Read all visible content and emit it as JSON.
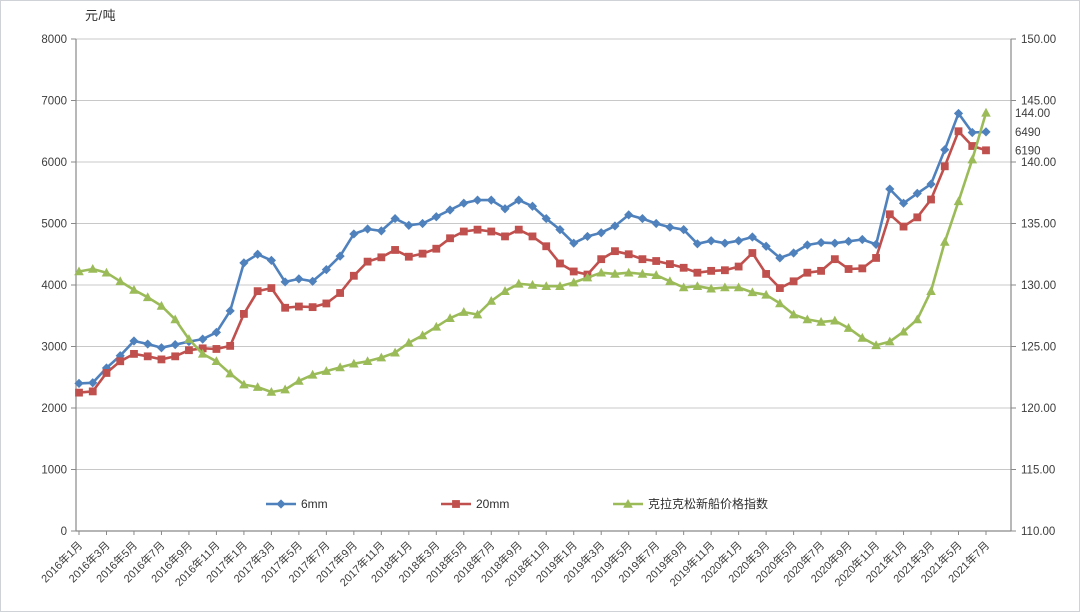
{
  "page": {
    "background": "#ffffff",
    "border_color": "#cfd2d6",
    "text_color": "#3d3d3d",
    "grid_color": "#c8c8c8",
    "axis_color": "#898989"
  },
  "chart_data": {
    "type": "line",
    "unit_label": "元/吨",
    "x": [
      "2016年1月",
      "2016年2月",
      "2016年3月",
      "2016年4月",
      "2016年5月",
      "2016年6月",
      "2016年7月",
      "2016年8月",
      "2016年9月",
      "2016年10月",
      "2016年11月",
      "2016年12月",
      "2017年1月",
      "2017年2月",
      "2017年3月",
      "2017年4月",
      "2017年5月",
      "2017年6月",
      "2017年7月",
      "2017年8月",
      "2017年9月",
      "2017年10月",
      "2017年11月",
      "2017年12月",
      "2018年1月",
      "2018年2月",
      "2018年3月",
      "2018年4月",
      "2018年5月",
      "2018年6月",
      "2018年7月",
      "2018年8月",
      "2018年9月",
      "2018年10月",
      "2018年11月",
      "2018年12月",
      "2019年1月",
      "2019年2月",
      "2019年3月",
      "2019年4月",
      "2019年5月",
      "2019年6月",
      "2019年7月",
      "2019年8月",
      "2019年9月",
      "2019年10月",
      "2019年11月",
      "2019年12月",
      "2020年1月",
      "2020年2月",
      "2020年3月",
      "2020年4月",
      "2020年5月",
      "2020年6月",
      "2020年7月",
      "2020年8月",
      "2020年9月",
      "2020年10月",
      "2020年11月",
      "2020年12月",
      "2021年1月",
      "2021年2月",
      "2021年3月",
      "2021年4月",
      "2021年5月",
      "2021年6月",
      "2021年7月"
    ],
    "label_every": 2,
    "left_axis": {
      "min": 0,
      "max": 8000,
      "step": 1000,
      "tick_labels": [
        "0",
        "1000",
        "2000",
        "3000",
        "4000",
        "5000",
        "6000",
        "7000",
        "8000"
      ]
    },
    "right_axis": {
      "min": 110,
      "max": 150,
      "step": 5,
      "tick_labels": [
        "110.00",
        "115.00",
        "120.00",
        "125.00",
        "130.00",
        "135.00",
        "140.00",
        "145.00",
        "150.00"
      ]
    },
    "series": [
      {
        "name": "6mm",
        "axis": "left",
        "color": "#4f81bd",
        "marker": "diamond",
        "values": [
          2400,
          2410,
          2650,
          2850,
          3090,
          3040,
          2980,
          3030,
          3080,
          3120,
          3230,
          3580,
          4360,
          4500,
          4400,
          4050,
          4100,
          4060,
          4250,
          4470,
          4830,
          4910,
          4880,
          5080,
          4970,
          5000,
          5110,
          5220,
          5330,
          5380,
          5380,
          5240,
          5380,
          5280,
          5080,
          4900,
          4680,
          4790,
          4850,
          4960,
          5140,
          5080,
          5000,
          4940,
          4900,
          4670,
          4720,
          4680,
          4720,
          4780,
          4630,
          4440,
          4520,
          4650,
          4690,
          4680,
          4710,
          4740,
          4660,
          5560,
          5330,
          5490,
          5640,
          6200,
          6790,
          6480,
          6490
        ]
      },
      {
        "name": "20mm",
        "axis": "left",
        "color": "#c0504d",
        "marker": "square",
        "values": [
          2250,
          2270,
          2570,
          2760,
          2880,
          2840,
          2790,
          2840,
          2940,
          2970,
          2960,
          3010,
          3530,
          3900,
          3950,
          3630,
          3650,
          3640,
          3700,
          3870,
          4150,
          4380,
          4450,
          4570,
          4460,
          4510,
          4590,
          4760,
          4870,
          4900,
          4870,
          4790,
          4900,
          4790,
          4630,
          4350,
          4220,
          4170,
          4420,
          4550,
          4500,
          4420,
          4390,
          4340,
          4280,
          4200,
          4230,
          4240,
          4300,
          4520,
          4180,
          3950,
          4060,
          4200,
          4230,
          4420,
          4260,
          4270,
          4440,
          5150,
          4950,
          5100,
          5390,
          5930,
          6500,
          6260,
          6190
        ]
      },
      {
        "name": "克拉克松新船价格指数",
        "axis": "right",
        "color": "#9bbb59",
        "marker": "triangle",
        "values": [
          131.1,
          131.3,
          131.0,
          130.3,
          129.6,
          129.0,
          128.3,
          127.2,
          125.6,
          124.4,
          123.8,
          122.8,
          121.9,
          121.7,
          121.3,
          121.5,
          122.2,
          122.7,
          123.0,
          123.3,
          123.6,
          123.8,
          124.1,
          124.5,
          125.3,
          125.9,
          126.6,
          127.3,
          127.8,
          127.6,
          128.7,
          129.5,
          130.1,
          130.0,
          129.9,
          129.9,
          130.2,
          130.6,
          131.0,
          130.9,
          131.0,
          130.9,
          130.8,
          130.3,
          129.8,
          129.9,
          129.7,
          129.8,
          129.8,
          129.4,
          129.2,
          128.5,
          127.6,
          127.2,
          127.0,
          127.1,
          126.5,
          125.7,
          125.1,
          125.4,
          126.2,
          127.2,
          129.5,
          133.5,
          136.8,
          140.2,
          144.0
        ]
      }
    ],
    "end_labels": [
      {
        "text": "144.00",
        "axis": "right",
        "value": 144.0
      },
      {
        "text": "6490",
        "axis": "left",
        "value": 6490
      },
      {
        "text": "6190",
        "axis": "left",
        "value": 6190
      }
    ],
    "legend": {
      "position": "bottom",
      "items": [
        {
          "label": "6mm",
          "color": "#4f81bd",
          "marker": "diamond"
        },
        {
          "label": "20mm",
          "color": "#c0504d",
          "marker": "square"
        },
        {
          "label": "克拉克松新船价格指数",
          "color": "#9bbb59",
          "marker": "triangle"
        }
      ]
    },
    "grid": true
  }
}
